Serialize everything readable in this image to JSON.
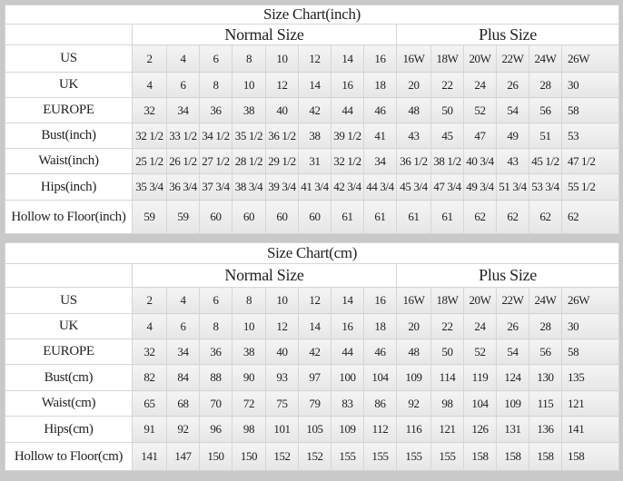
{
  "tables": [
    {
      "title": "Size Chart(inch)",
      "normal_label": "Normal Size",
      "plus_label": "Plus Size",
      "rows": [
        {
          "label": "US",
          "values": [
            "2",
            "4",
            "6",
            "8",
            "10",
            "12",
            "14",
            "16",
            "16W",
            "18W",
            "20W",
            "22W",
            "24W",
            "26W"
          ]
        },
        {
          "label": "UK",
          "values": [
            "4",
            "6",
            "8",
            "10",
            "12",
            "14",
            "16",
            "18",
            "20",
            "22",
            "24",
            "26",
            "28",
            "30"
          ]
        },
        {
          "label": "EUROPE",
          "values": [
            "32",
            "34",
            "36",
            "38",
            "40",
            "42",
            "44",
            "46",
            "48",
            "50",
            "52",
            "54",
            "56",
            "58"
          ]
        },
        {
          "label": "Bust(inch)",
          "values": [
            "32 1/2",
            "33 1/2",
            "34 1/2",
            "35 1/2",
            "36 1/2",
            "38",
            "39 1/2",
            "41",
            "43",
            "45",
            "47",
            "49",
            "51",
            "53"
          ]
        },
        {
          "label": "Waist(inch)",
          "values": [
            "25 1/2",
            "26 1/2",
            "27 1/2",
            "28 1/2",
            "29 1/2",
            "31",
            "32 1/2",
            "34",
            "36 1/2",
            "38 1/2",
            "40 3/4",
            "43",
            "45 1/2",
            "47 1/2"
          ]
        },
        {
          "label": "Hips(inch)",
          "values": [
            "35 3/4",
            "36 3/4",
            "37 3/4",
            "38 3/4",
            "39 3/4",
            "41 3/4",
            "42 3/4",
            "44 3/4",
            "45 3/4",
            "47 3/4",
            "49 3/4",
            "51 3/4",
            "53 3/4",
            "55 1/2"
          ]
        },
        {
          "label": "Hollow to Floor(inch)",
          "values": [
            "59",
            "59",
            "60",
            "60",
            "60",
            "60",
            "61",
            "61",
            "61",
            "61",
            "62",
            "62",
            "62",
            "62"
          ]
        }
      ]
    },
    {
      "title": "Size Chart(cm)",
      "normal_label": "Normal Size",
      "plus_label": "Plus Size",
      "rows": [
        {
          "label": "US",
          "values": [
            "2",
            "4",
            "6",
            "8",
            "10",
            "12",
            "14",
            "16",
            "16W",
            "18W",
            "20W",
            "22W",
            "24W",
            "26W"
          ]
        },
        {
          "label": "UK",
          "values": [
            "4",
            "6",
            "8",
            "10",
            "12",
            "14",
            "16",
            "18",
            "20",
            "22",
            "24",
            "26",
            "28",
            "30"
          ]
        },
        {
          "label": "EUROPE",
          "values": [
            "32",
            "34",
            "36",
            "38",
            "40",
            "42",
            "44",
            "46",
            "48",
            "50",
            "52",
            "54",
            "56",
            "58"
          ]
        },
        {
          "label": "Bust(cm)",
          "values": [
            "82",
            "84",
            "88",
            "90",
            "93",
            "97",
            "100",
            "104",
            "109",
            "114",
            "119",
            "124",
            "130",
            "135"
          ]
        },
        {
          "label": "Waist(cm)",
          "values": [
            "65",
            "68",
            "70",
            "72",
            "75",
            "79",
            "83",
            "86",
            "92",
            "98",
            "104",
            "109",
            "115",
            "121"
          ]
        },
        {
          "label": "Hips(cm)",
          "values": [
            "91",
            "92",
            "96",
            "98",
            "101",
            "105",
            "109",
            "112",
            "116",
            "121",
            "126",
            "131",
            "136",
            "141"
          ]
        },
        {
          "label": "Hollow to Floor(cm)",
          "values": [
            "141",
            "147",
            "150",
            "150",
            "152",
            "152",
            "155",
            "155",
            "155",
            "155",
            "158",
            "158",
            "158",
            "158"
          ]
        }
      ]
    }
  ]
}
